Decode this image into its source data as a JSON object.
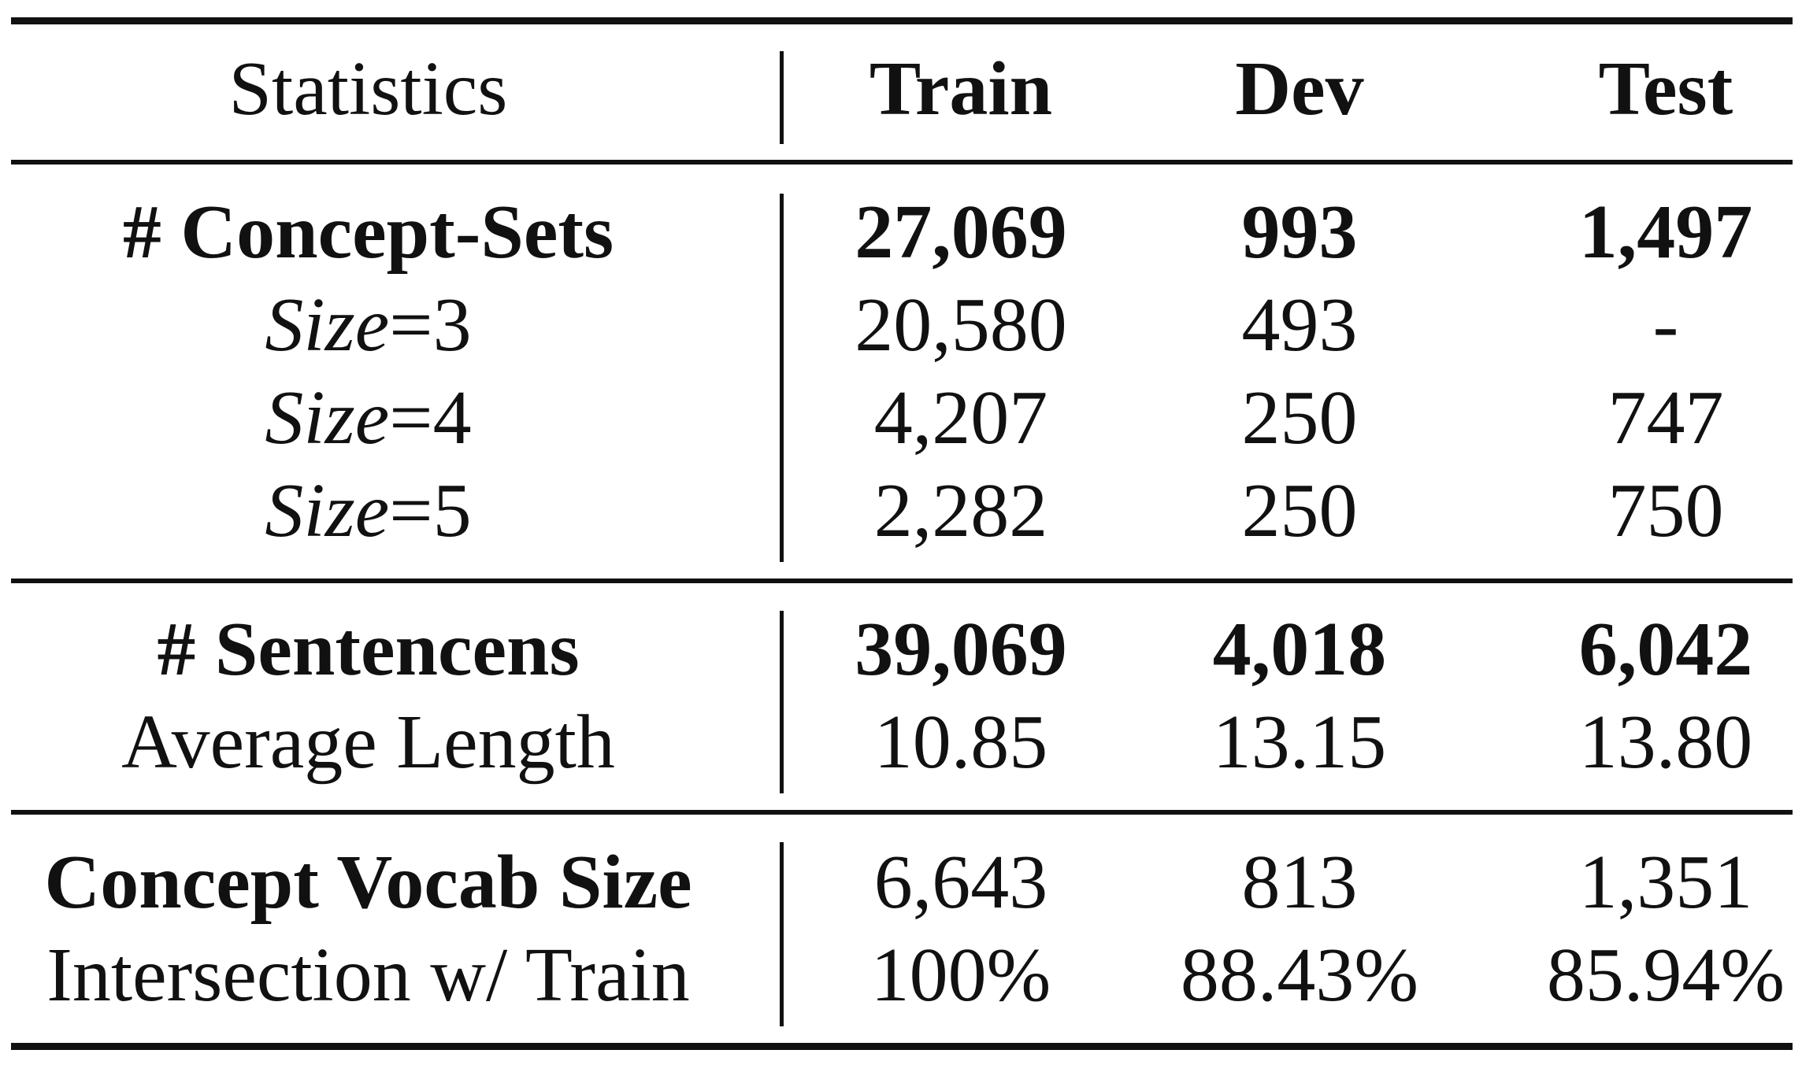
{
  "table": {
    "header": {
      "statistics": "Statistics",
      "train": "Train",
      "dev": "Dev",
      "test": "Test"
    },
    "concept_sets": {
      "total": {
        "label": "# Concept-Sets",
        "train": "27,069",
        "dev": "993",
        "test": "1,497"
      },
      "size3": {
        "label_italic": "Size",
        "label_rest": "=3",
        "train": "20,580",
        "dev": "493",
        "test": "-"
      },
      "size4": {
        "label_italic": "Size",
        "label_rest": "=4",
        "train": "4,207",
        "dev": "250",
        "test": "747"
      },
      "size5": {
        "label_italic": "Size",
        "label_rest": "=5",
        "train": "2,282",
        "dev": "250",
        "test": "750"
      }
    },
    "sentences": {
      "total": {
        "label": "# Sentencens",
        "train": "39,069",
        "dev": "4,018",
        "test": "6,042"
      },
      "avg_length": {
        "label": "Average Length",
        "train": "10.85",
        "dev": "13.15",
        "test": "13.80"
      }
    },
    "vocab": {
      "size": {
        "label": "Concept Vocab Size",
        "train": "6,643",
        "dev": "813",
        "test": "1,351"
      },
      "intersection": {
        "label": "Intersection w/ Train",
        "train": "100%",
        "dev": "88.43%",
        "test": "85.94%"
      }
    }
  }
}
